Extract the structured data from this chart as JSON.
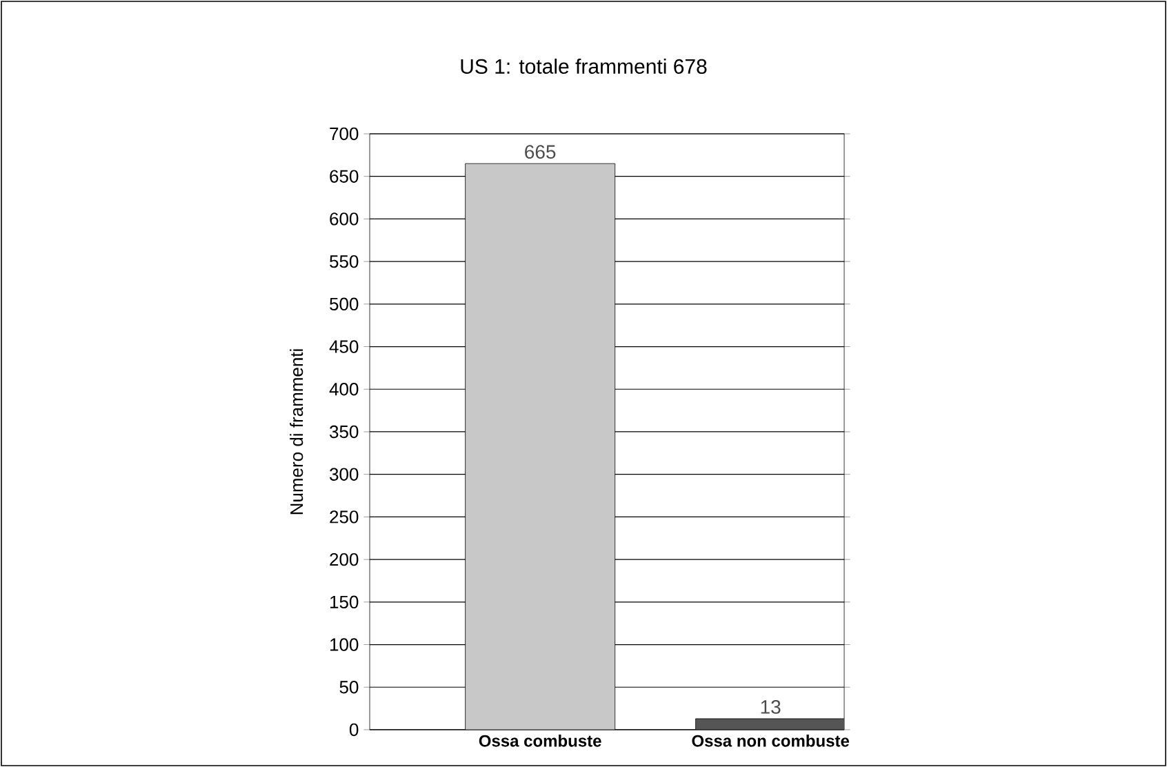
{
  "chart_data": {
    "type": "bar",
    "title": "US 1: totale frammenti 678",
    "ylabel": "Numero di frammenti",
    "categories": [
      "Ossa combuste",
      "Ossa non combuste"
    ],
    "values": [
      665,
      13
    ],
    "colors": [
      "#c8c8c8",
      "#555555"
    ],
    "ylim": [
      0,
      700
    ],
    "yticks": [
      0,
      50,
      100,
      150,
      200,
      250,
      300,
      350,
      400,
      450,
      500,
      550,
      600,
      650,
      700
    ],
    "grid": "y",
    "data_labels": true
  }
}
